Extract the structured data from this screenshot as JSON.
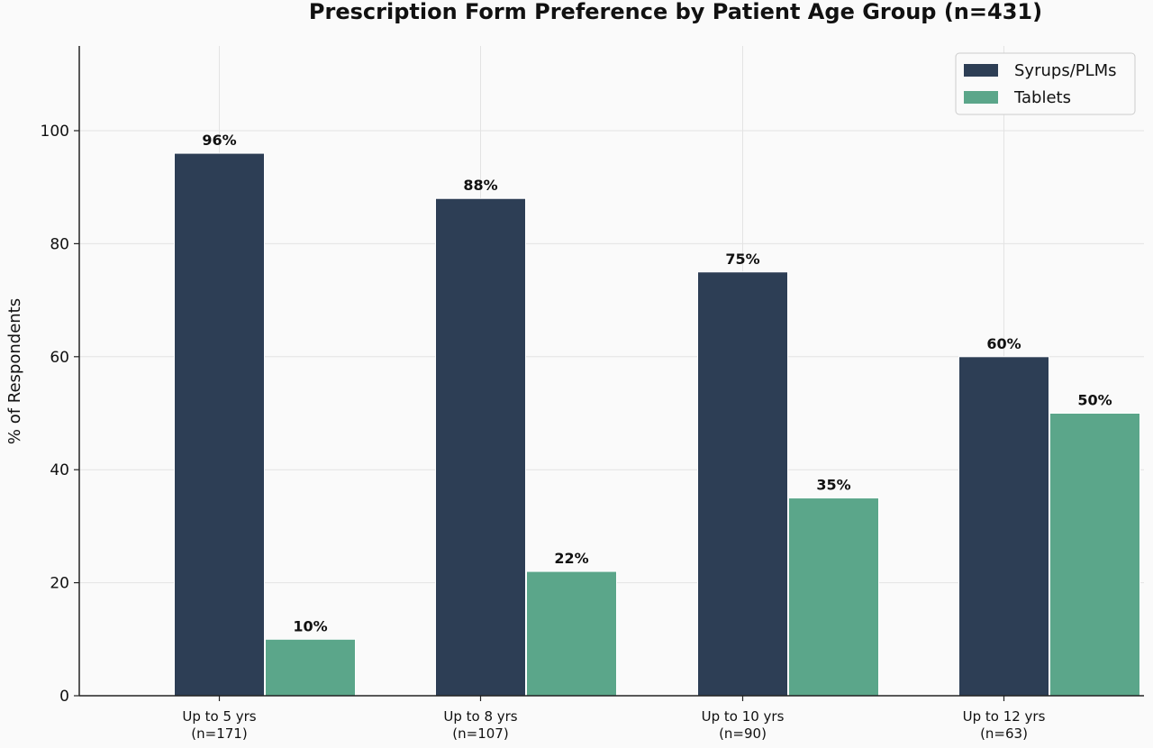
{
  "chart_data": {
    "type": "bar",
    "title": "Prescription Form Preference by Patient Age Group (n=431)",
    "ylabel": "% of Respondents",
    "xlabel": "",
    "ylim": [
      0,
      115
    ],
    "yticks": [
      0,
      20,
      40,
      60,
      80,
      100
    ],
    "grid": true,
    "legend_position": "top-right",
    "categories": [
      {
        "label": "Up to 5 yrs",
        "sub": "(n=171)"
      },
      {
        "label": "Up to 8 yrs",
        "sub": "(n=107)"
      },
      {
        "label": "Up to 10 yrs",
        "sub": "(n=90)"
      },
      {
        "label": "Up to 12 yrs",
        "sub": "(n=63)"
      }
    ],
    "series": [
      {
        "name": "Syrups/PLMs",
        "color": "#2d3e55",
        "values": [
          96,
          88,
          75,
          60
        ],
        "labels": [
          "96%",
          "88%",
          "75%",
          "60%"
        ]
      },
      {
        "name": "Tablets",
        "color": "#5ba68a",
        "values": [
          10,
          22,
          35,
          50
        ],
        "labels": [
          "10%",
          "22%",
          "35%",
          "50%"
        ]
      }
    ]
  }
}
